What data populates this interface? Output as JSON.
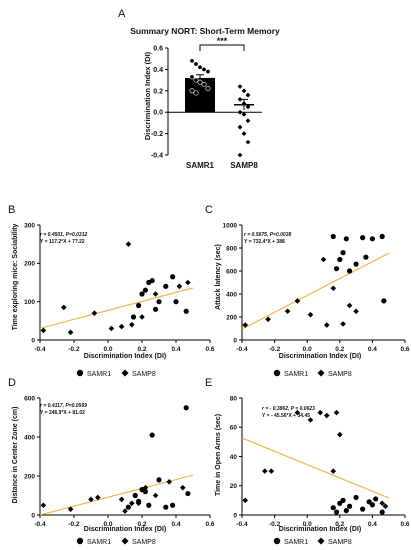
{
  "figure": {
    "panelA": {
      "letter": "A",
      "title": "Summary NORT: Short-Term Memory",
      "ylabel": "Discrimination Index (DI)",
      "significance": "***",
      "ylim": [
        -0.4,
        0.6
      ],
      "yticks": [
        "0.6",
        "0.4",
        "0.2",
        "0.0",
        "-0.2",
        "-0.4"
      ],
      "categories": [
        "SAMR1",
        "SAMP8"
      ],
      "bar_color": "#000000"
    },
    "scatter_panels": [
      {
        "letter": "B",
        "ylabel": "Time exploring mice: Sociability",
        "xlabel": "Discrimination Index (DI)",
        "stat_line1": "r = 0.4501, P=0.0312",
        "stat_line2": "Y = 117.2*X + 77.22",
        "xticks": [
          "-0.4",
          "-0.2",
          "0.0",
          "0.2",
          "0.4",
          "0.6"
        ],
        "yticks": [
          "300",
          "200",
          "100",
          "0"
        ],
        "legend_samr1": "SAMR1",
        "legend_samp8": "SAMP8"
      },
      {
        "letter": "C",
        "ylabel": "Attack latency (sec)",
        "xlabel": "Discrimination Index (DI)",
        "stat_line1": "r = 0.5675, P=0.0038",
        "stat_line2": "Y = 732.4*X + 388",
        "xticks": [
          "-0.4",
          "-0.2",
          "0.0",
          "0.2",
          "0.4",
          "0.6"
        ],
        "yticks": [
          "1000",
          "800",
          "600",
          "400",
          "200",
          "0"
        ],
        "legend_samr1": "SAMR1",
        "legend_samp8": "SAMP8"
      },
      {
        "letter": "D",
        "ylabel": "Distance in Center Zone (cm)",
        "xlabel": "Discrimination Index (DI)",
        "stat_line1": "r = 0.4117, P=0.0569",
        "stat_line2": "Y = 246.9*X + 81.02",
        "xticks": [
          "-0.4",
          "-0.2",
          "0.0",
          "0.2",
          "0.4",
          "0.6"
        ],
        "yticks": [
          "600",
          "400",
          "200",
          "0"
        ],
        "legend_samr1": "SAMR1",
        "legend_samp8": "SAMP8"
      },
      {
        "letter": "E",
        "ylabel": "Time in Open Arms (sec)",
        "xlabel": "Discrimination Index (DI)",
        "stat_line1": "r = - 0.3862, P = 0.0623",
        "stat_line2": "Y = - 45.56*X + 34.45",
        "xticks": [
          "-0.4",
          "-0.2",
          "0.0",
          "0.2",
          "0.4",
          "0.6"
        ],
        "yticks": [
          "80",
          "60",
          "40",
          "20",
          "0"
        ],
        "legend_samr1": "SAMR1",
        "legend_samp8": "SAMP8"
      }
    ]
  },
  "chart_data": [
    {
      "type": "bar",
      "title": "Summary NORT: Short-Term Memory",
      "ylabel": "Discrimination Index (DI)",
      "categories": [
        "SAMR1",
        "SAMP8"
      ],
      "values": [
        0.32,
        0.07
      ],
      "errors": [
        0.03,
        0.05
      ],
      "ylim": [
        -0.4,
        0.6
      ],
      "significance": "***",
      "points": {
        "SAMR1": [
          0.48,
          0.45,
          0.42,
          0.4,
          0.38,
          0.33,
          0.3,
          0.28,
          0.26,
          0.22,
          0.2,
          0.18
        ],
        "SAMP8": [
          0.24,
          0.2,
          0.16,
          0.12,
          0.08,
          0.05,
          0.0,
          -0.02,
          -0.08,
          -0.14,
          -0.2,
          -0.28,
          -0.4
        ]
      }
    },
    {
      "type": "scatter",
      "xlabel": "Discrimination Index (DI)",
      "ylabel": "Time exploring mice: Sociability",
      "xlim": [
        -0.4,
        0.6
      ],
      "ylim": [
        0,
        300
      ],
      "series": [
        {
          "name": "SAMR1",
          "marker": "circle",
          "x": [
            0.15,
            0.18,
            0.2,
            0.22,
            0.24,
            0.26,
            0.28,
            0.3,
            0.34,
            0.38,
            0.4,
            0.46
          ],
          "y": [
            60,
            90,
            120,
            130,
            150,
            155,
            80,
            100,
            140,
            165,
            100,
            75
          ]
        },
        {
          "name": "SAMP8",
          "marker": "diamond",
          "x": [
            -0.38,
            -0.26,
            -0.22,
            -0.08,
            0.02,
            0.08,
            0.12,
            0.14,
            0.2,
            0.28,
            0.42,
            0.47
          ],
          "y": [
            25,
            85,
            20,
            70,
            30,
            35,
            250,
            40,
            60,
            120,
            140,
            150
          ]
        }
      ],
      "fit": {
        "slope": 117.2,
        "intercept": 77.22
      },
      "annotation": [
        "r = 0.4501, P=0.0312",
        "Y = 117.2*X + 77.22"
      ]
    },
    {
      "type": "scatter",
      "xlabel": "Discrimination Index (DI)",
      "ylabel": "Attack latency (sec)",
      "xlim": [
        -0.4,
        0.6
      ],
      "ylim": [
        0,
        1000
      ],
      "series": [
        {
          "name": "SAMR1",
          "marker": "circle",
          "x": [
            0.16,
            0.18,
            0.2,
            0.22,
            0.24,
            0.26,
            0.3,
            0.34,
            0.36,
            0.4,
            0.46,
            0.47
          ],
          "y": [
            900,
            620,
            700,
            760,
            880,
            600,
            660,
            890,
            720,
            880,
            900,
            340
          ]
        },
        {
          "name": "SAMP8",
          "marker": "diamond",
          "x": [
            -0.38,
            -0.24,
            -0.12,
            -0.06,
            0.02,
            0.1,
            0.12,
            0.16,
            0.22,
            0.26,
            0.3
          ],
          "y": [
            130,
            180,
            250,
            340,
            220,
            700,
            130,
            450,
            140,
            300,
            250
          ]
        }
      ],
      "fit": {
        "slope": 732.4,
        "intercept": 388
      },
      "annotation": [
        "r = 0.5675, P=0.0038",
        "Y = 732.4*X + 388"
      ]
    },
    {
      "type": "scatter",
      "xlabel": "Discrimination Index (DI)",
      "ylabel": "Distance in Center Zone (cm)",
      "xlim": [
        -0.4,
        0.6
      ],
      "ylim": [
        0,
        600
      ],
      "series": [
        {
          "name": "SAMR1",
          "marker": "circle",
          "x": [
            0.12,
            0.16,
            0.18,
            0.2,
            0.22,
            0.24,
            0.26,
            0.3,
            0.34,
            0.38,
            0.46,
            0.47
          ],
          "y": [
            40,
            100,
            70,
            130,
            120,
            50,
            410,
            180,
            40,
            50,
            550,
            110
          ]
        },
        {
          "name": "SAMP8",
          "marker": "diamond",
          "x": [
            -0.38,
            -0.22,
            -0.1,
            -0.06,
            0.08,
            0.1,
            0.14,
            0.18,
            0.22,
            0.28,
            0.36,
            0.44
          ],
          "y": [
            50,
            30,
            80,
            90,
            80,
            20,
            60,
            60,
            140,
            100,
            170,
            140
          ]
        }
      ],
      "fit": {
        "slope": 246.9,
        "intercept": 81.02
      },
      "annotation": [
        "r = 0.4117, P=0.0569",
        "Y = 246.9*X + 81.02"
      ]
    },
    {
      "type": "scatter",
      "xlabel": "Discrimination Index (DI)",
      "ylabel": "Time in Open Arms (sec)",
      "xlim": [
        -0.4,
        0.6
      ],
      "ylim": [
        0,
        80
      ],
      "series": [
        {
          "name": "SAMR1",
          "marker": "circle",
          "x": [
            0.16,
            0.18,
            0.2,
            0.22,
            0.24,
            0.26,
            0.3,
            0.34,
            0.38,
            0.4,
            0.42,
            0.46
          ],
          "y": [
            5,
            2,
            8,
            10,
            3,
            6,
            12,
            4,
            9,
            7,
            11,
            2
          ]
        },
        {
          "name": "SAMP8",
          "marker": "diamond",
          "x": [
            -0.38,
            -0.26,
            -0.22,
            -0.06,
            0.02,
            0.08,
            0.12,
            0.16,
            0.18,
            0.2,
            0.46,
            0.48
          ],
          "y": [
            10,
            30,
            30,
            70,
            65,
            70,
            68,
            30,
            70,
            55,
            8,
            6
          ]
        }
      ],
      "fit": {
        "slope": -45.56,
        "intercept": 34.45
      },
      "annotation": [
        "r = - 0.3862, P = 0.0623",
        "Y = - 45.56*X + 34.45"
      ]
    }
  ]
}
